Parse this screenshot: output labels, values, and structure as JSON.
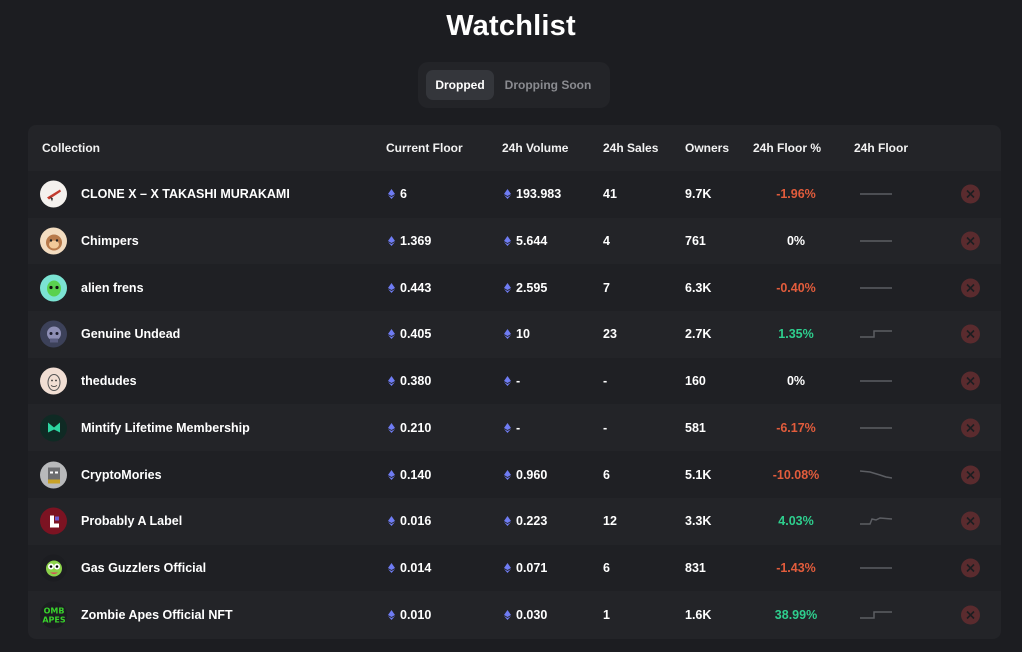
{
  "page": {
    "title": "Watchlist"
  },
  "tabs": [
    {
      "label": "Dropped",
      "active": true
    },
    {
      "label": "Dropping Soon",
      "active": false
    }
  ],
  "columns": {
    "collection": "Collection",
    "current_floor": "Current Floor",
    "volume_24h": "24h Volume",
    "sales_24h": "24h Sales",
    "owners": "Owners",
    "floor_pct_24h": "24h Floor %",
    "floor_24h": "24h Floor"
  },
  "colors": {
    "negative": "#e25c3c",
    "positive": "#2ecf8e",
    "eth": "#6f7cf3"
  },
  "rows": [
    {
      "name": "CLONE X – X TAKASHI MURAKAMI",
      "avatar_icon": "clonex-avatar-icon",
      "floor": "6",
      "volume": "193.983",
      "sales": "41",
      "owners": "9.7K",
      "floor_pct": "-1.96%",
      "trend": "negative",
      "spark": "flat"
    },
    {
      "name": "Chimpers",
      "avatar_icon": "chimpers-avatar-icon",
      "floor": "1.369",
      "volume": "5.644",
      "sales": "4",
      "owners": "761",
      "floor_pct": "0%",
      "trend": "neutral",
      "spark": "flat"
    },
    {
      "name": "alien frens",
      "avatar_icon": "alien-frens-avatar-icon",
      "floor": "0.443",
      "volume": "2.595",
      "sales": "7",
      "owners": "6.3K",
      "floor_pct": "-0.40%",
      "trend": "negative",
      "spark": "flat"
    },
    {
      "name": "Genuine Undead",
      "avatar_icon": "genuine-undead-avatar-icon",
      "floor": "0.405",
      "volume": "10",
      "sales": "23",
      "owners": "2.7K",
      "floor_pct": "1.35%",
      "trend": "positive",
      "spark": "step-up"
    },
    {
      "name": "thedudes",
      "avatar_icon": "thedudes-avatar-icon",
      "floor": "0.380",
      "volume": "-",
      "sales": "-",
      "owners": "160",
      "floor_pct": "0%",
      "trend": "neutral",
      "spark": "flat"
    },
    {
      "name": "Mintify Lifetime Membership",
      "avatar_icon": "mintify-avatar-icon",
      "floor": "0.210",
      "volume": "-",
      "sales": "-",
      "owners": "581",
      "floor_pct": "-6.17%",
      "trend": "negative",
      "spark": "flat"
    },
    {
      "name": "CryptoMories",
      "avatar_icon": "cryptomories-avatar-icon",
      "floor": "0.140",
      "volume": "0.960",
      "sales": "6",
      "owners": "5.1K",
      "floor_pct": "-10.08%",
      "trend": "negative",
      "spark": "down"
    },
    {
      "name": "Probably A Label",
      "avatar_icon": "probably-a-label-avatar-icon",
      "floor": "0.016",
      "volume": "0.223",
      "sales": "12",
      "owners": "3.3K",
      "floor_pct": "4.03%",
      "trend": "positive",
      "spark": "step-up-wobble"
    },
    {
      "name": "Gas Guzzlers Official",
      "avatar_icon": "gas-guzzlers-avatar-icon",
      "floor": "0.014",
      "volume": "0.071",
      "sales": "6",
      "owners": "831",
      "floor_pct": "-1.43%",
      "trend": "negative",
      "spark": "flat"
    },
    {
      "name": "Zombie Apes Official NFT",
      "avatar_icon": "zombie-apes-avatar-icon",
      "floor": "0.010",
      "volume": "0.030",
      "sales": "1",
      "owners": "1.6K",
      "floor_pct": "38.99%",
      "trend": "positive",
      "spark": "step-up"
    }
  ]
}
